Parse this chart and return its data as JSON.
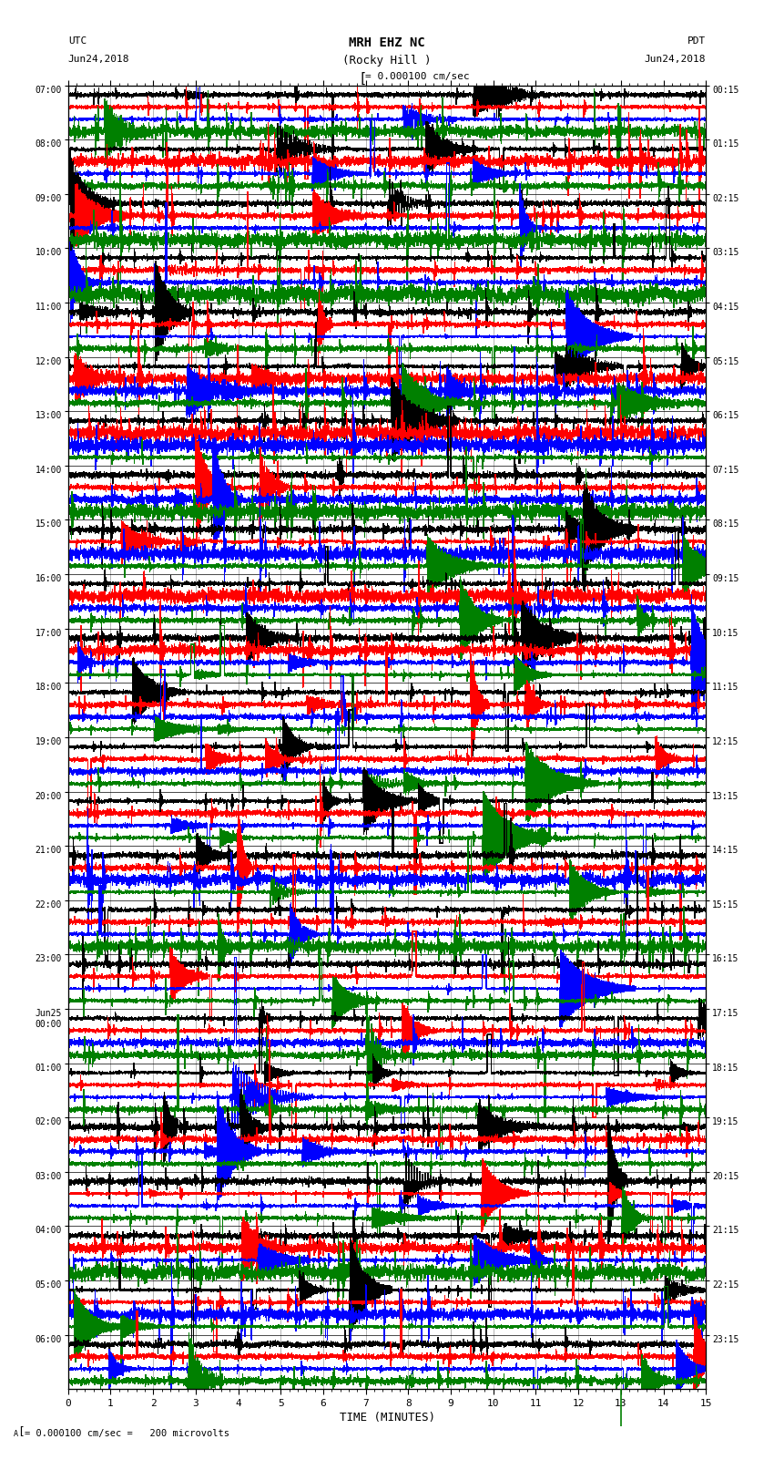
{
  "title_line1": "MRH EHZ NC",
  "title_line2": "(Rocky Hill )",
  "scale_label": "= 0.000100 cm/sec",
  "bottom_scale_label": "= 0.000100 cm/sec =   200 microvolts",
  "utc_label": "UTC",
  "pdt_label": "PDT",
  "date_left": "Jun24,2018",
  "date_right": "Jun24,2018",
  "xlabel": "TIME (MINUTES)",
  "left_times": [
    "07:00",
    "08:00",
    "09:00",
    "10:00",
    "11:00",
    "12:00",
    "13:00",
    "14:00",
    "15:00",
    "16:00",
    "17:00",
    "18:00",
    "19:00",
    "20:00",
    "21:00",
    "22:00",
    "23:00",
    "Jun25\n00:00",
    "01:00",
    "02:00",
    "03:00",
    "04:00",
    "05:00",
    "06:00"
  ],
  "right_times": [
    "00:15",
    "01:15",
    "02:15",
    "03:15",
    "04:15",
    "05:15",
    "06:15",
    "07:15",
    "08:15",
    "09:15",
    "10:15",
    "11:15",
    "12:15",
    "13:15",
    "14:15",
    "15:15",
    "16:15",
    "17:15",
    "18:15",
    "19:15",
    "20:15",
    "21:15",
    "22:15",
    "23:15"
  ],
  "colors": [
    "black",
    "red",
    "blue",
    "green"
  ],
  "n_rows": 24,
  "traces_per_row": 4,
  "xmin": 0,
  "xmax": 15,
  "bg_color": "#ffffff",
  "line_width": 0.35,
  "figsize": [
    8.5,
    16.13
  ],
  "dpi": 100
}
